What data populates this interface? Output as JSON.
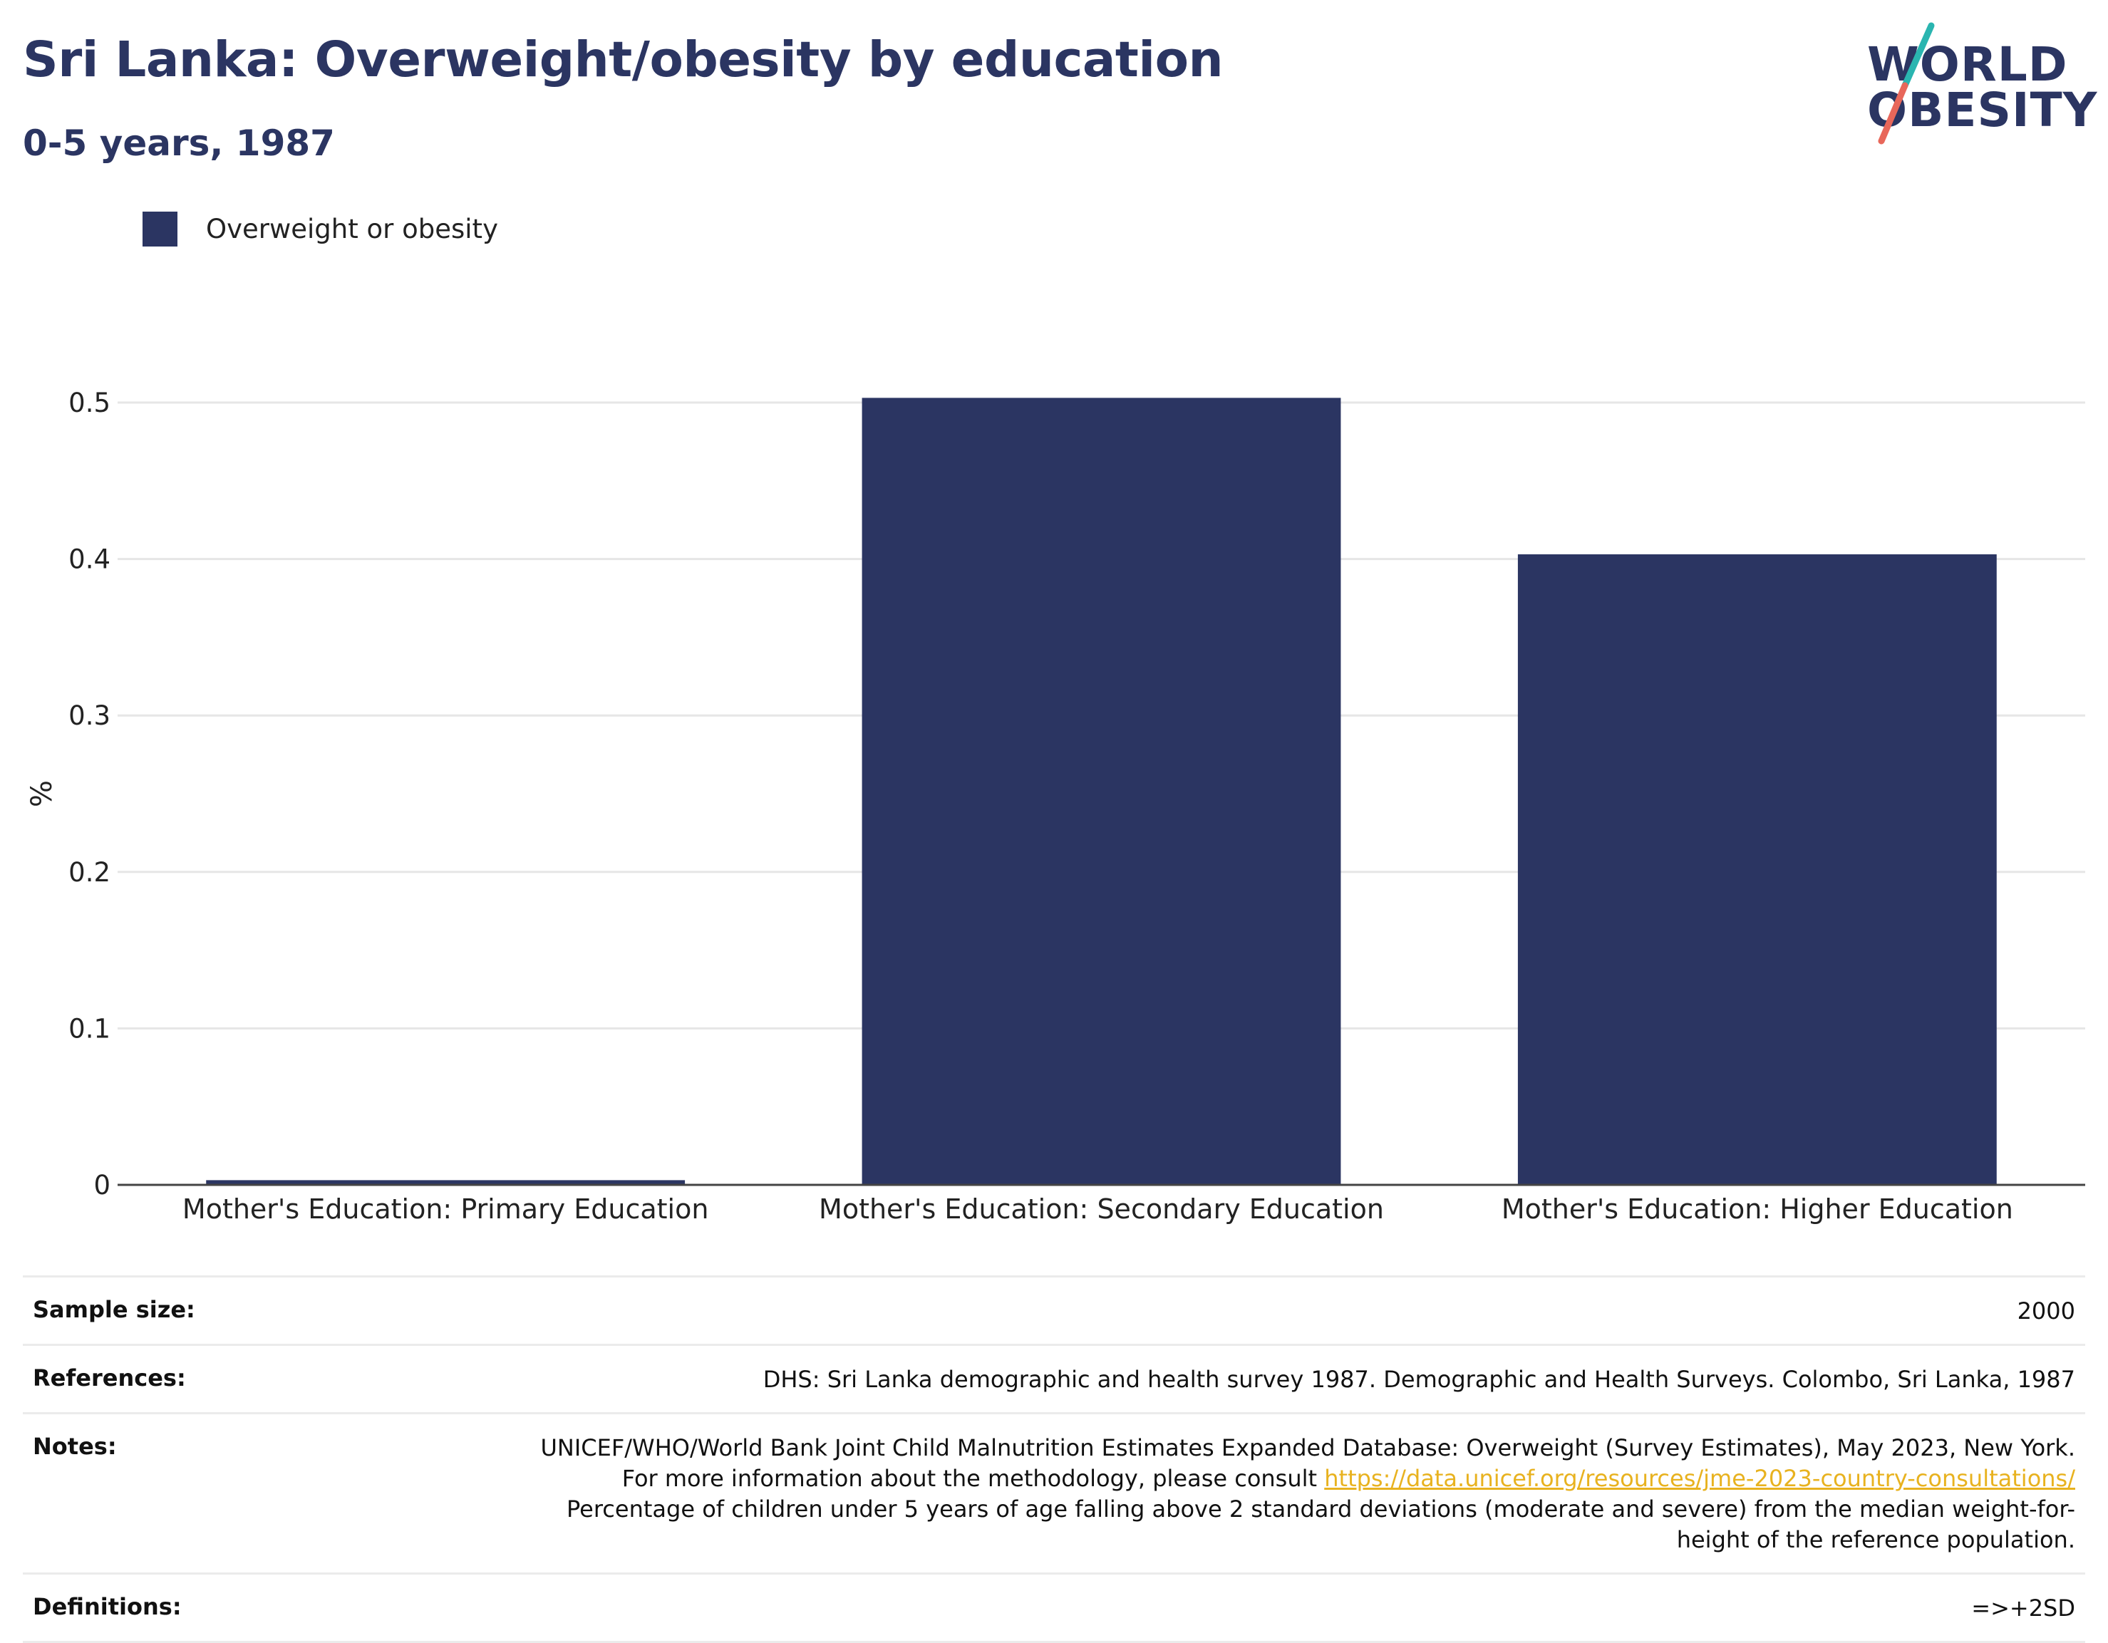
{
  "header": {
    "title": "Sri Lanka: Overweight/obesity by education",
    "subtitle": "0-5 years, 1987"
  },
  "logo": {
    "line1": "WORLD",
    "line2": "OBESITY",
    "stripe_colors": [
      "#2ab5b0",
      "#e8675a"
    ]
  },
  "legend": {
    "label": "Overweight or obesity",
    "color": "#2b3562"
  },
  "chart_data": {
    "type": "bar",
    "title": "Sri Lanka: Overweight/obesity by education",
    "subtitle": "0-5 years, 1987",
    "categories": [
      "Mother's Education: Primary Education",
      "Mother's Education: Secondary Education",
      "Mother's Education: Higher Education"
    ],
    "series": [
      {
        "name": "Overweight or obesity",
        "values": [
          0.003,
          0.503,
          0.403
        ],
        "color": "#2b3562"
      }
    ],
    "xlabel": "",
    "ylabel": "%",
    "ylim": [
      0,
      0.5
    ],
    "yticks": [
      0,
      0.1,
      0.2,
      0.3,
      0.4,
      0.5
    ],
    "ytick_labels": [
      "0",
      "0.1",
      "0.2",
      "0.3",
      "0.4",
      "0.5"
    ],
    "grid": true,
    "legend_position": "top-left"
  },
  "info": {
    "sample_size_label": "Sample size:",
    "sample_size_value": "2000",
    "references_label": "References:",
    "references_value": "DHS: Sri Lanka demographic and health survey 1987. Demographic and Health Surveys. Colombo, Sri Lanka, 1987",
    "notes_label": "Notes:",
    "notes_text_1": "UNICEF/WHO/World Bank Joint Child Malnutrition Estimates Expanded Database: Overweight (Survey Estimates), May 2023, New York. For more information about the methodology, please consult ",
    "notes_link": "https://data.unicef.org/resources/jme-2023-country-consultations/",
    "notes_text_2": "Percentage of children under 5 years of age falling above 2 standard deviations (moderate and severe) from the median weight-for-height of the reference population.",
    "definitions_label": "Definitions:",
    "definitions_value": "=>+2SD"
  }
}
